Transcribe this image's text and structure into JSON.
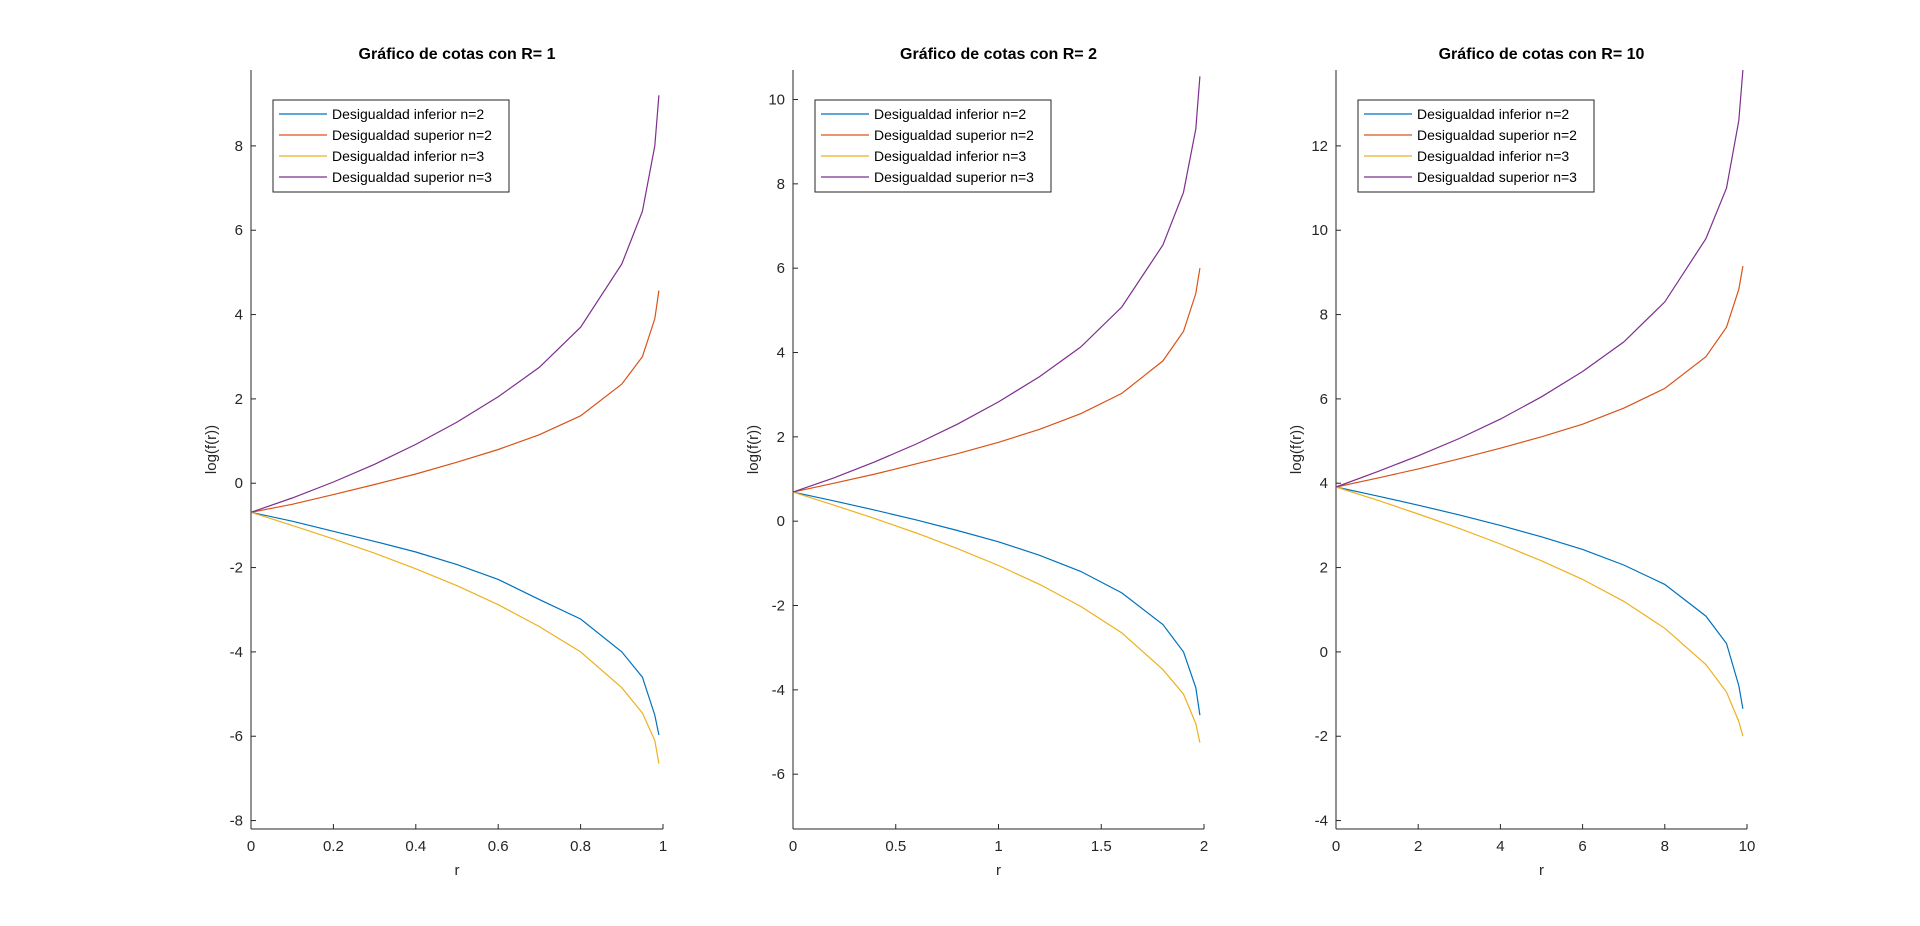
{
  "chart_data": [
    {
      "type": "line",
      "title": "Gráfico de cotas con R= 1",
      "xlabel": "r",
      "ylabel": "log(f(r))",
      "xlim": [
        0,
        1
      ],
      "ylim": [
        -8.2,
        9.8
      ],
      "xticks": [
        0,
        0.2,
        0.4,
        0.6,
        0.8,
        1
      ],
      "xtick_labels": [
        "0",
        "0.2",
        "0.4",
        "0.6",
        "0.8",
        "1"
      ],
      "yticks": [
        -8,
        -6,
        -4,
        -2,
        0,
        2,
        4,
        6,
        8
      ],
      "ytick_labels": [
        "-8",
        "-6",
        "-4",
        "-2",
        "0",
        "2",
        "4",
        "6",
        "8"
      ],
      "legend_position": "top-left",
      "grid": false,
      "series": [
        {
          "name": "Desigualdad inferior n=2",
          "color": "#0072BD",
          "x": [
            0,
            0.1,
            0.2,
            0.3,
            0.4,
            0.5,
            0.6,
            0.7,
            0.8,
            0.9,
            0.95,
            0.98,
            0.99
          ],
          "y": [
            -0.69,
            -0.9,
            -1.14,
            -1.38,
            -1.63,
            -1.93,
            -2.28,
            -2.76,
            -3.22,
            -4.0,
            -4.6,
            -5.5,
            -5.97
          ]
        },
        {
          "name": "Desigualdad superior n=2",
          "color": "#D95319",
          "x": [
            0,
            0.1,
            0.2,
            0.3,
            0.4,
            0.5,
            0.6,
            0.7,
            0.8,
            0.9,
            0.95,
            0.98,
            0.99
          ],
          "y": [
            -0.69,
            -0.5,
            -0.27,
            -0.03,
            0.22,
            0.5,
            0.8,
            1.15,
            1.6,
            2.35,
            3.0,
            3.9,
            4.57
          ]
        },
        {
          "name": "Desigualdad inferior n=3",
          "color": "#EDB120",
          "x": [
            0,
            0.1,
            0.2,
            0.3,
            0.4,
            0.5,
            0.6,
            0.7,
            0.8,
            0.9,
            0.95,
            0.98,
            0.99
          ],
          "y": [
            -0.69,
            -1.0,
            -1.32,
            -1.66,
            -2.03,
            -2.43,
            -2.88,
            -3.4,
            -4.0,
            -4.85,
            -5.45,
            -6.1,
            -6.65
          ]
        },
        {
          "name": "Desigualdad superior n=3",
          "color": "#7E2F8E",
          "x": [
            0,
            0.1,
            0.2,
            0.3,
            0.4,
            0.5,
            0.6,
            0.7,
            0.8,
            0.9,
            0.95,
            0.98,
            0.99
          ],
          "y": [
            -0.69,
            -0.35,
            0.03,
            0.45,
            0.92,
            1.45,
            2.05,
            2.75,
            3.7,
            5.2,
            6.45,
            8.0,
            9.2
          ]
        }
      ]
    },
    {
      "type": "line",
      "title": "Gráfico de cotas con R= 2",
      "xlabel": "r",
      "ylabel": "log(f(r))",
      "xlim": [
        0,
        2
      ],
      "ylim": [
        -7.3,
        10.7
      ],
      "xticks": [
        0,
        0.5,
        1,
        1.5,
        2
      ],
      "xtick_labels": [
        "0",
        "0.5",
        "1",
        "1.5",
        "2"
      ],
      "yticks": [
        -6,
        -4,
        -2,
        0,
        2,
        4,
        6,
        8,
        10
      ],
      "ytick_labels": [
        "-6",
        "-4",
        "-2",
        "0",
        "2",
        "4",
        "6",
        "8",
        "10"
      ],
      "legend_position": "top-left",
      "grid": false,
      "series": [
        {
          "name": "Desigualdad inferior n=2",
          "color": "#0072BD",
          "x": [
            0,
            0.2,
            0.4,
            0.6,
            0.8,
            1.0,
            1.2,
            1.4,
            1.6,
            1.8,
            1.9,
            1.96,
            1.98
          ],
          "y": [
            0.69,
            0.48,
            0.26,
            0.03,
            -0.22,
            -0.49,
            -0.81,
            -1.19,
            -1.7,
            -2.45,
            -3.1,
            -3.95,
            -4.6
          ]
        },
        {
          "name": "Desigualdad superior n=2",
          "color": "#D95319",
          "x": [
            0,
            0.2,
            0.4,
            0.6,
            0.8,
            1.0,
            1.2,
            1.4,
            1.6,
            1.8,
            1.9,
            1.96,
            1.98
          ],
          "y": [
            0.69,
            0.9,
            1.12,
            1.36,
            1.6,
            1.87,
            2.18,
            2.55,
            3.03,
            3.8,
            4.5,
            5.4,
            6.0
          ]
        },
        {
          "name": "Desigualdad inferior n=3",
          "color": "#EDB120",
          "x": [
            0,
            0.2,
            0.4,
            0.6,
            0.8,
            1.0,
            1.2,
            1.4,
            1.6,
            1.8,
            1.9,
            1.96,
            1.98
          ],
          "y": [
            0.69,
            0.38,
            0.06,
            -0.28,
            -0.65,
            -1.05,
            -1.5,
            -2.02,
            -2.65,
            -3.52,
            -4.1,
            -4.8,
            -5.25
          ]
        },
        {
          "name": "Desigualdad superior n=3",
          "color": "#7E2F8E",
          "x": [
            0,
            0.2,
            0.4,
            0.6,
            0.8,
            1.0,
            1.2,
            1.4,
            1.6,
            1.8,
            1.9,
            1.96,
            1.98
          ],
          "y": [
            0.69,
            1.03,
            1.41,
            1.83,
            2.3,
            2.83,
            3.43,
            4.13,
            5.08,
            6.55,
            7.8,
            9.3,
            10.55
          ]
        }
      ]
    },
    {
      "type": "line",
      "title": "Gráfico de cotas con R= 10",
      "xlabel": "r",
      "ylabel": "log(f(r))",
      "xlim": [
        0,
        10
      ],
      "ylim": [
        -4.2,
        13.8
      ],
      "xticks": [
        0,
        2,
        4,
        6,
        8,
        10
      ],
      "xtick_labels": [
        "0",
        "2",
        "4",
        "6",
        "8",
        "10"
      ],
      "yticks": [
        -4,
        -2,
        0,
        2,
        4,
        6,
        8,
        10,
        12
      ],
      "ytick_labels": [
        "-4",
        "-2",
        "0",
        "2",
        "4",
        "6",
        "8",
        "10",
        "12"
      ],
      "legend_position": "top-left",
      "grid": false,
      "series": [
        {
          "name": "Desigualdad inferior n=2",
          "color": "#0072BD",
          "x": [
            0,
            1,
            2,
            3,
            4,
            5,
            6,
            7,
            8,
            9,
            9.5,
            9.8,
            9.9
          ],
          "y": [
            3.91,
            3.7,
            3.48,
            3.25,
            3.0,
            2.73,
            2.43,
            2.06,
            1.6,
            0.85,
            0.2,
            -0.8,
            -1.35
          ]
        },
        {
          "name": "Desigualdad superior n=2",
          "color": "#D95319",
          "x": [
            0,
            1,
            2,
            3,
            4,
            5,
            6,
            7,
            8,
            9,
            9.5,
            9.8,
            9.9
          ],
          "y": [
            3.91,
            4.12,
            4.34,
            4.58,
            4.83,
            5.1,
            5.4,
            5.78,
            6.25,
            7.0,
            7.7,
            8.6,
            9.15
          ]
        },
        {
          "name": "Desigualdad inferior n=3",
          "color": "#EDB120",
          "x": [
            0,
            1,
            2,
            3,
            4,
            5,
            6,
            7,
            8,
            9,
            9.5,
            9.8,
            9.9
          ],
          "y": [
            3.91,
            3.6,
            3.27,
            2.93,
            2.56,
            2.16,
            1.72,
            1.2,
            0.56,
            -0.3,
            -0.95,
            -1.65,
            -2.0
          ]
        },
        {
          "name": "Desigualdad superior n=3",
          "color": "#7E2F8E",
          "x": [
            0,
            1,
            2,
            3,
            4,
            5,
            6,
            7,
            8,
            9,
            9.5,
            9.8,
            9.9
          ],
          "y": [
            3.91,
            4.27,
            4.65,
            5.06,
            5.52,
            6.05,
            6.65,
            7.35,
            8.3,
            9.8,
            11.0,
            12.6,
            13.8
          ]
        }
      ]
    }
  ]
}
